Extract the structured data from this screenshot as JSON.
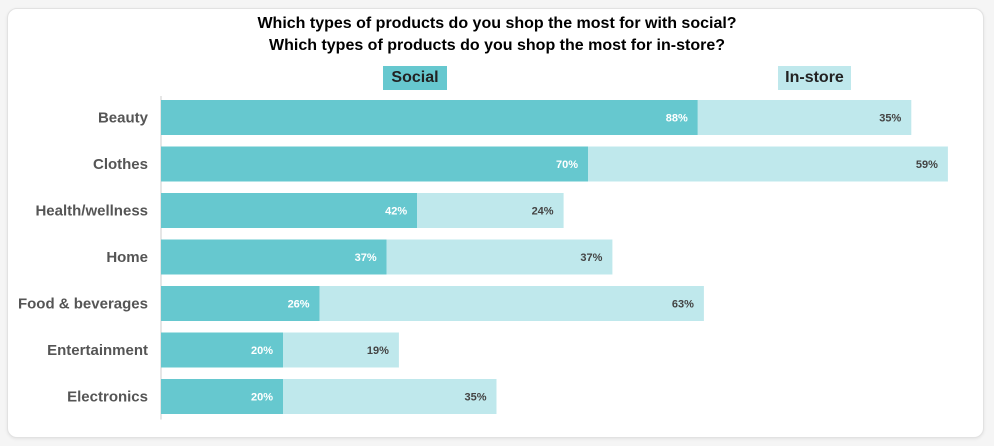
{
  "chart_data": {
    "type": "bar",
    "orientation": "horizontal",
    "stacked": true,
    "title": "Which types of products do you shop the most for with social?",
    "subtitle": "Which types of products do you shop the most for in-store?",
    "categories": [
      "Beauty",
      "Clothes",
      "Health/wellness",
      "Home",
      "Food & beverages",
      "Entertainment",
      "Electronics"
    ],
    "series": [
      {
        "name": "Social",
        "values": [
          88,
          70,
          42,
          37,
          26,
          20,
          20
        ],
        "labels": [
          "88%",
          "70%",
          "42%",
          "37%",
          "26%",
          "20%",
          "20%"
        ],
        "color": "#66c8cf",
        "label_color": "#ffffff"
      },
      {
        "name": "In-store",
        "values": [
          35,
          59,
          24,
          37,
          63,
          19,
          35
        ],
        "labels": [
          "35%",
          "59%",
          "24%",
          "37%",
          "63%",
          "19%",
          "35%"
        ],
        "color": "#bfe8ec",
        "label_color": "#444444"
      }
    ],
    "xlim": [
      0,
      129
    ],
    "legend_position": "top",
    "grid": false
  }
}
